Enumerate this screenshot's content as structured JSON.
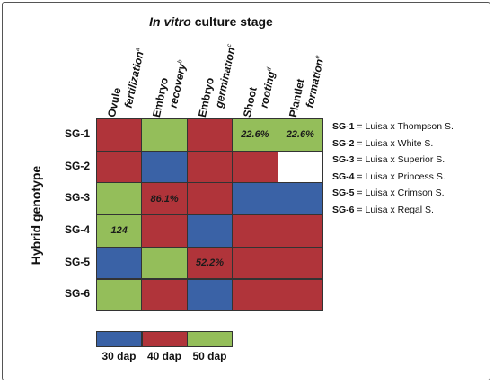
{
  "figure": {
    "title_italic": "In vitro",
    "title_rest": "culture stage",
    "y_label": "Hybrid genotype"
  },
  "chart_data": {
    "type": "heatmap",
    "stages": [
      {
        "line1": "Ovule",
        "line2": "fertilization",
        "sup": "a"
      },
      {
        "line1": "Embryo",
        "line2": "recovery",
        "sup": "b"
      },
      {
        "line1": "Embryo",
        "line2": "germination",
        "sup": "c"
      },
      {
        "line1": "Shoot",
        "line2": "rooting",
        "sup": "d"
      },
      {
        "line1": "Plantlet",
        "line2": "formation",
        "sup": "e"
      }
    ],
    "genotypes": [
      "SG-1",
      "SG-2",
      "SG-3",
      "SG-4",
      "SG-5",
      "SG-6"
    ],
    "colors": {
      "30 dap": "#3A62A6",
      "40 dap": "#B0343A",
      "50 dap": "#94BE5A",
      "none": "#FFFFFF"
    },
    "grid": [
      [
        "40 dap",
        "50 dap",
        "40 dap",
        "50 dap",
        "50 dap"
      ],
      [
        "40 dap",
        "30 dap",
        "40 dap",
        "40 dap",
        "none"
      ],
      [
        "50 dap",
        "40 dap",
        "40 dap",
        "30 dap",
        "30 dap"
      ],
      [
        "50 dap",
        "40 dap",
        "30 dap",
        "40 dap",
        "40 dap"
      ],
      [
        "30 dap",
        "50 dap",
        "40 dap",
        "40 dap",
        "40 dap"
      ],
      [
        "50 dap",
        "40 dap",
        "30 dap",
        "40 dap",
        "40 dap"
      ]
    ],
    "annotations": [
      {
        "row": 0,
        "col": 3,
        "text": "22.6%"
      },
      {
        "row": 0,
        "col": 4,
        "text": "22.6%"
      },
      {
        "row": 2,
        "col": 1,
        "text": "86.1%"
      },
      {
        "row": 3,
        "col": 0,
        "text": "124"
      },
      {
        "row": 4,
        "col": 2,
        "text": "52.2%"
      }
    ],
    "legend": [
      {
        "label": "30 dap",
        "color": "#3A62A6"
      },
      {
        "label": "40 dap",
        "color": "#B0343A"
      },
      {
        "label": "50 dap",
        "color": "#94BE5A"
      }
    ]
  },
  "key": [
    {
      "code": "SG-1",
      "text": " = Luisa x Thompson S."
    },
    {
      "code": "SG-2",
      "text": " = Luisa x White S."
    },
    {
      "code": "SG-3",
      "text": " = Luisa x Superior S."
    },
    {
      "code": "SG-4",
      "text": " = Luisa x Princess S."
    },
    {
      "code": "SG-5",
      "text": " = Luisa x Crimson S."
    },
    {
      "code": "SG-6",
      "text": " = Luisa x Regal S."
    }
  ]
}
